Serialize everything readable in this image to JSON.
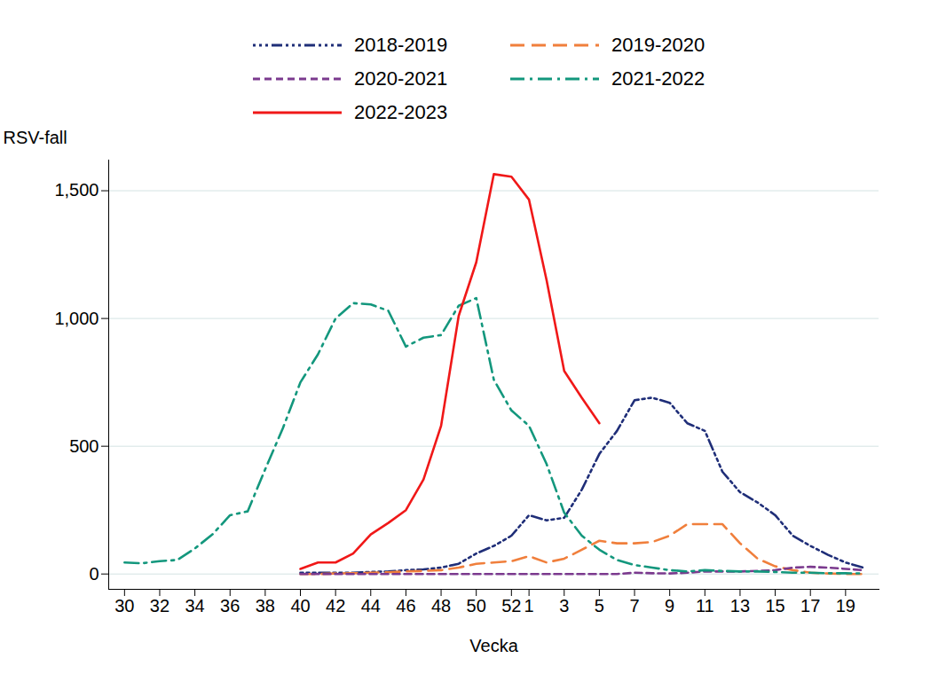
{
  "chart_data": {
    "type": "line",
    "x_label": "Vecka",
    "y_label": "RSV-fall",
    "categories": [
      "30",
      null,
      "32",
      null,
      "34",
      null,
      "36",
      null,
      "38",
      null,
      "40",
      null,
      "42",
      null,
      "44",
      null,
      "46",
      null,
      "48",
      null,
      "50",
      null,
      "52",
      "1",
      null,
      "3",
      null,
      "5",
      null,
      "7",
      null,
      "9",
      null,
      "11",
      null,
      "13",
      null,
      "15",
      null,
      "17",
      null,
      "19",
      null
    ],
    "ylim": [
      -60,
      1620
    ],
    "yticks": [
      0,
      500,
      1000,
      1500
    ],
    "grid": true,
    "legend": "top",
    "series": [
      {
        "name": "2018-2019",
        "color": "#1f2e78",
        "line_style": "dashdotdot",
        "values": [
          null,
          null,
          null,
          null,
          null,
          null,
          null,
          null,
          null,
          null,
          5,
          5,
          5,
          5,
          8,
          10,
          15,
          18,
          25,
          40,
          80,
          110,
          150,
          230,
          210,
          220,
          330,
          470,
          560,
          680,
          690,
          670,
          590,
          560,
          400,
          320,
          280,
          230,
          150,
          110,
          75,
          45,
          25
        ]
      },
      {
        "name": "2019-2020",
        "color": "#f07f3c",
        "line_style": "longdash",
        "values": [
          null,
          null,
          null,
          null,
          null,
          null,
          null,
          null,
          null,
          null,
          0,
          0,
          2,
          3,
          5,
          7,
          10,
          12,
          15,
          25,
          40,
          45,
          50,
          70,
          45,
          60,
          95,
          130,
          120,
          120,
          125,
          150,
          195,
          195,
          195,
          120,
          60,
          30,
          15,
          5,
          2,
          0,
          0
        ]
      },
      {
        "name": "2020-2021",
        "color": "#7b3a8e",
        "line_style": "dashed",
        "values": [
          null,
          null,
          null,
          null,
          null,
          null,
          null,
          null,
          null,
          null,
          0,
          0,
          0,
          0,
          0,
          0,
          0,
          0,
          0,
          0,
          0,
          0,
          0,
          0,
          0,
          0,
          0,
          0,
          0,
          5,
          3,
          2,
          5,
          10,
          10,
          10,
          12,
          15,
          25,
          28,
          25,
          20,
          15
        ]
      },
      {
        "name": "2021-2022",
        "color": "#13977d",
        "line_style": "dashdot",
        "values": [
          45,
          42,
          50,
          55,
          100,
          155,
          230,
          245,
          410,
          570,
          750,
          860,
          1000,
          1060,
          1055,
          1030,
          890,
          925,
          935,
          1050,
          1080,
          760,
          640,
          580,
          430,
          240,
          150,
          95,
          55,
          35,
          25,
          15,
          10,
          15,
          12,
          10,
          10,
          8,
          5,
          5,
          3,
          3,
          2
        ]
      },
      {
        "name": "2022-2023",
        "color": "#f01818",
        "line_style": "solid",
        "values": [
          null,
          null,
          null,
          null,
          null,
          null,
          null,
          null,
          null,
          null,
          20,
          45,
          45,
          80,
          155,
          200,
          250,
          370,
          580,
          1010,
          1220,
          1565,
          1555,
          1465,
          1150,
          795,
          690,
          590,
          null,
          null,
          null,
          null,
          null,
          null,
          null,
          null,
          null,
          null,
          null,
          null,
          null,
          null,
          null
        ]
      }
    ]
  }
}
